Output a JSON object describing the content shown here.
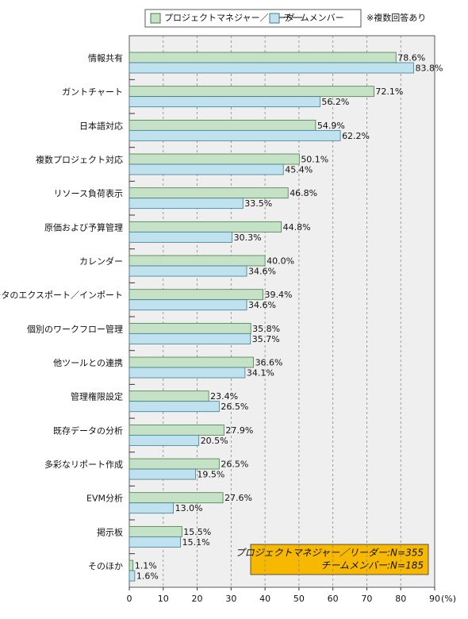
{
  "chart_data": {
    "type": "bar",
    "orientation": "horizontal",
    "note": "※複数回答あり",
    "xlabel": "(%)",
    "annotation": [
      "プロジェクトマネジャー／リーダー:N=355",
      "チームメンバー:N=185"
    ],
    "categories": [
      "情報共有",
      "ガントチャート",
      "日本語対応",
      "複数プロジェクト対応",
      "リソース負荷表示",
      "原価および予算管理",
      "カレンダー",
      "データのエクスポート／インポート",
      "個別のワークフロー管理",
      "他ツールとの連携",
      "管理権限設定",
      "既存データの分析",
      "多彩なリポート作成",
      "EVM分析",
      "掲示板",
      "そのほか"
    ],
    "series": [
      {
        "name": "プロジェクトマネジャー／リーダー",
        "color": "#c6e2c6",
        "values": [
          78.6,
          72.1,
          54.9,
          50.1,
          46.8,
          44.8,
          40.0,
          39.4,
          35.8,
          36.6,
          23.4,
          27.9,
          26.5,
          27.6,
          15.5,
          1.1
        ],
        "value_labels": [
          "78.6%",
          "72.1%",
          "54.9%",
          "50.1%",
          "46.8%",
          "44.8%",
          "40.0%",
          "39.4%",
          "35.8%",
          "36.6%",
          "23.4%",
          "27.9%",
          "26.5%",
          "27.6%",
          "15.5%",
          "1.1%"
        ]
      },
      {
        "name": "チームメンバー",
        "color": "#bfe2ee",
        "values": [
          83.8,
          56.2,
          62.2,
          45.4,
          33.5,
          30.3,
          34.6,
          34.6,
          35.7,
          34.1,
          26.5,
          20.5,
          19.5,
          13.0,
          15.1,
          1.6
        ],
        "value_labels": [
          "83.8%",
          "56.2%",
          "62.2%",
          "45.4%",
          "33.5%",
          "30.3%",
          "34.6%",
          "34.6%",
          "35.7%",
          "34.1%",
          "26.5%",
          "20.5%",
          "19.5%",
          "13.0%",
          "15.1%",
          "1.6%"
        ]
      }
    ],
    "xlim": [
      0,
      90
    ],
    "xticks": [
      0,
      10,
      20,
      30,
      40,
      50,
      60,
      70,
      80,
      90
    ],
    "grid": true
  }
}
